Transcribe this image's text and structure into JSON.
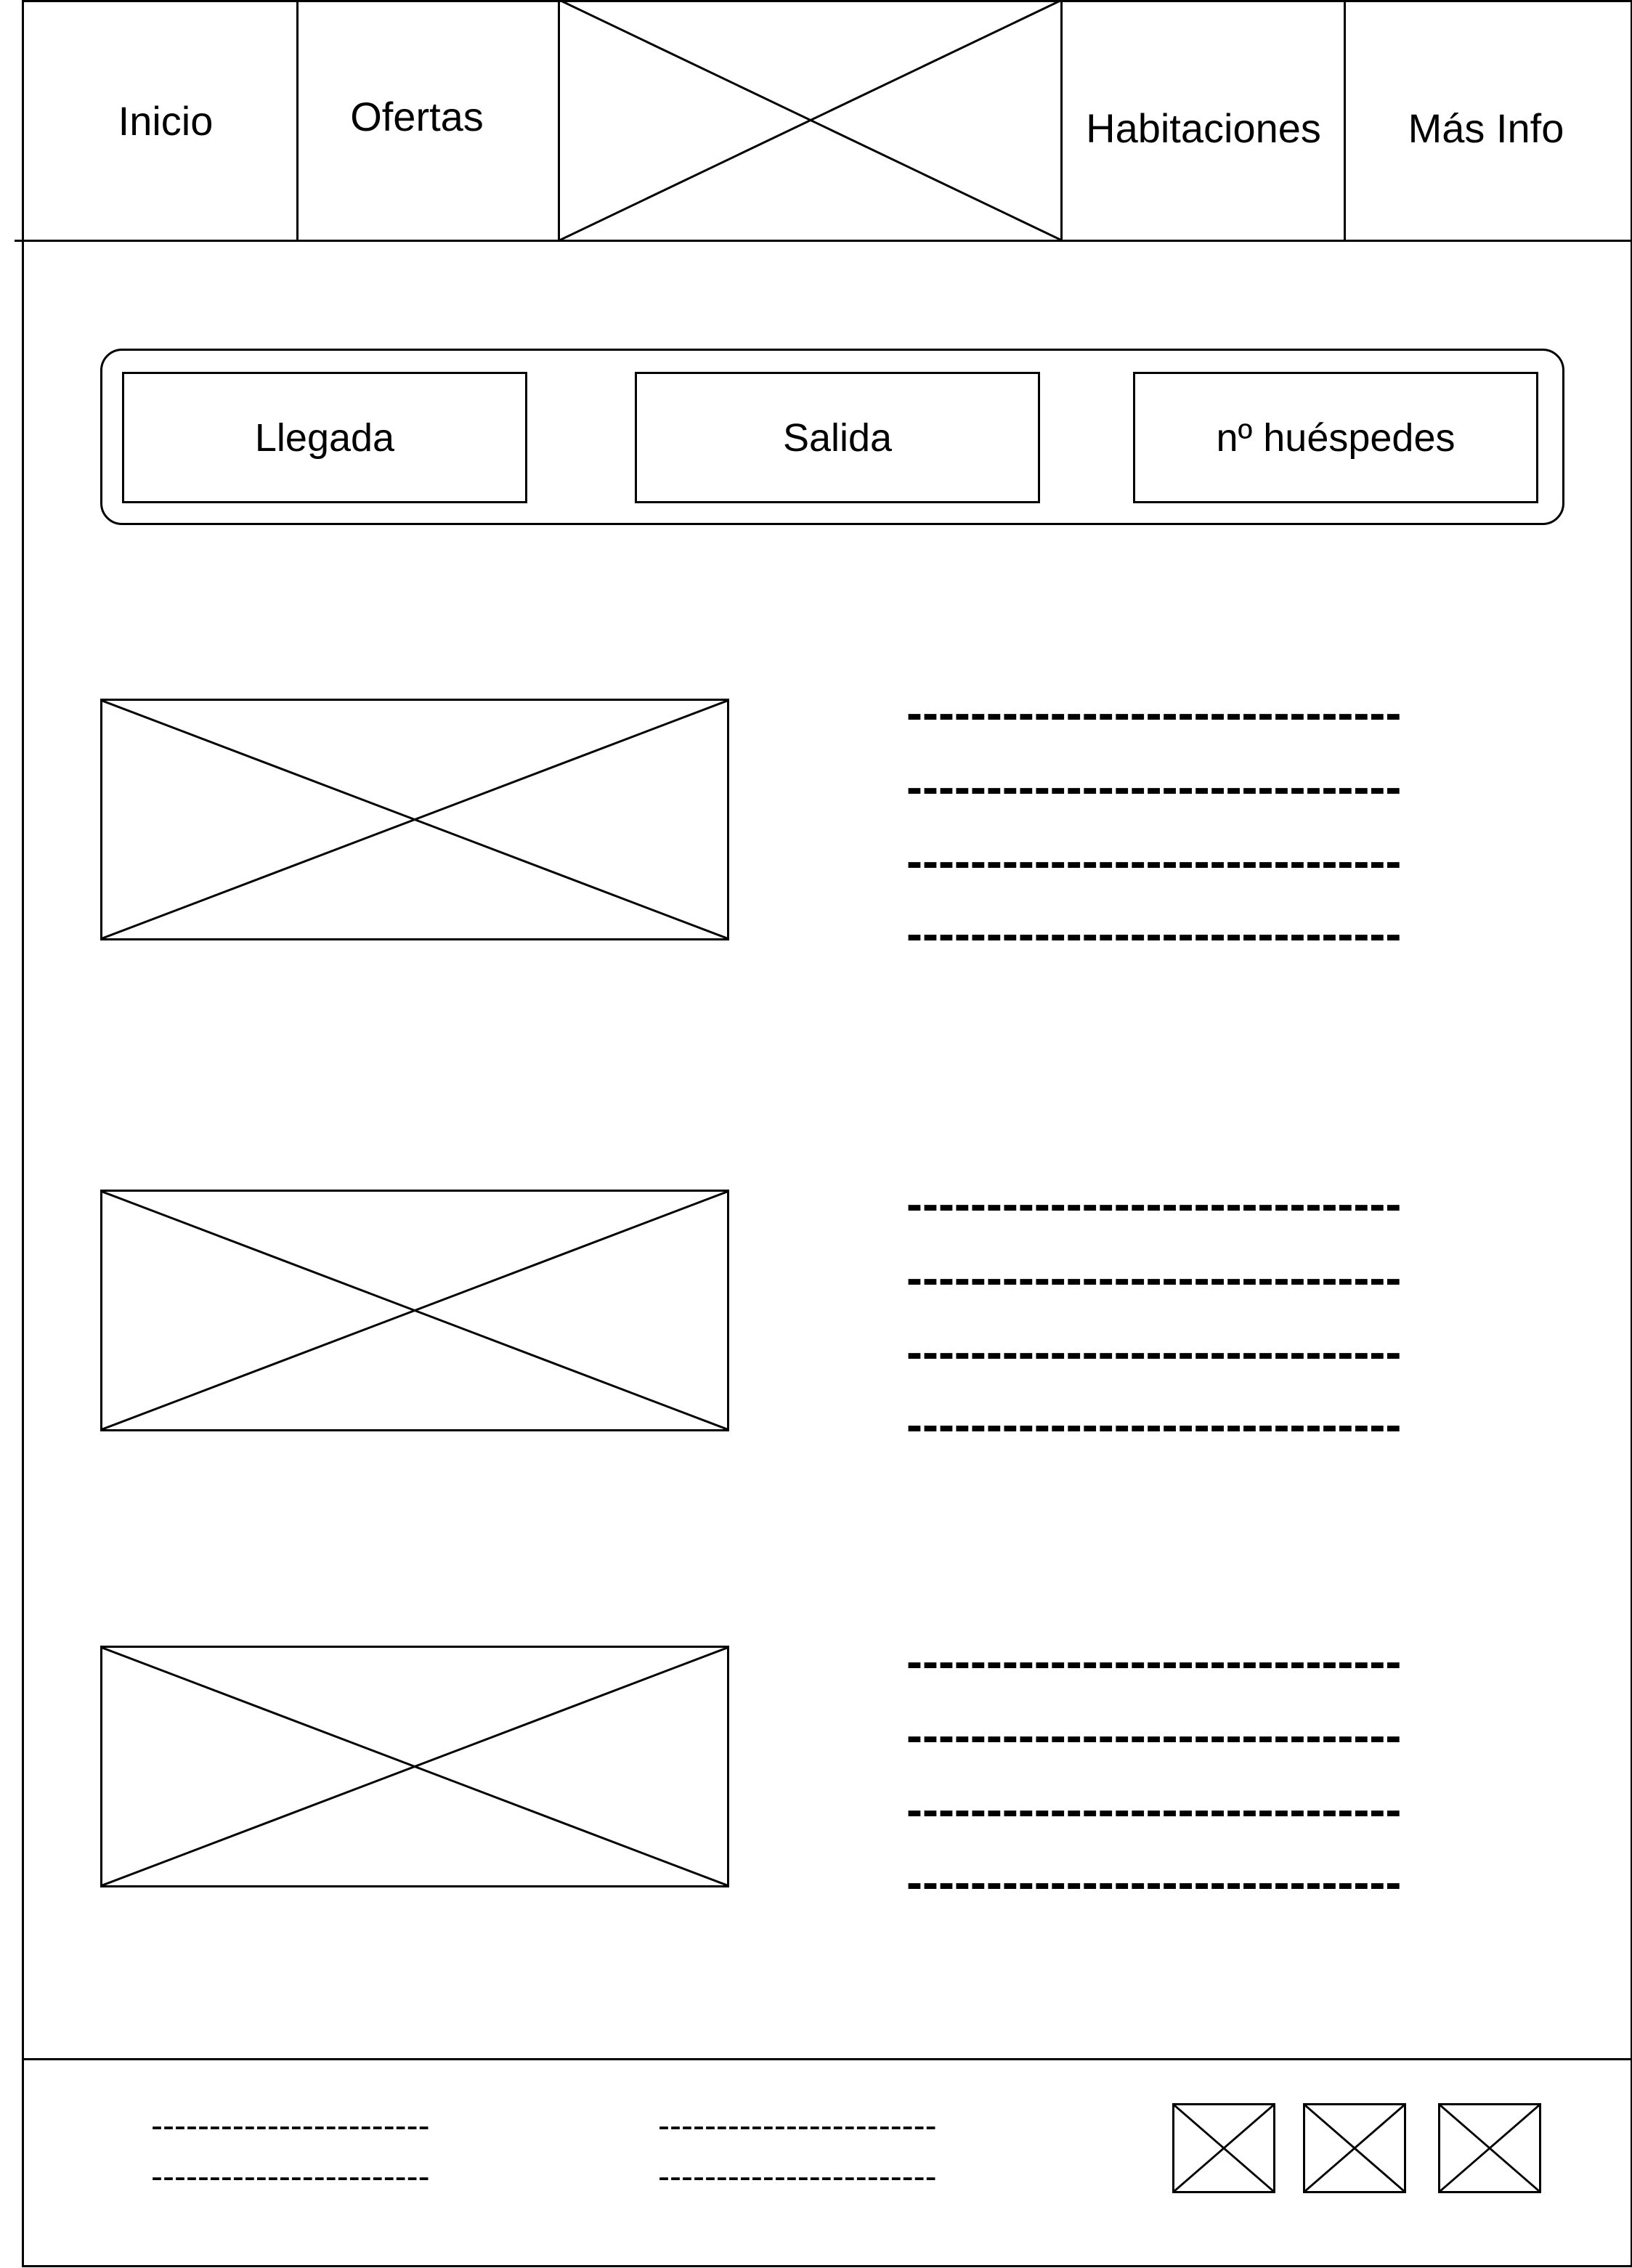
{
  "nav": {
    "items": [
      {
        "label": "Inicio"
      },
      {
        "label": "Ofertas"
      },
      {
        "label": "Habitaciones"
      },
      {
        "label": "Más Info"
      }
    ]
  },
  "booking": {
    "arrival_label": "Llegada",
    "departure_label": "Salida",
    "guests_label": "nº huéspedes"
  },
  "rooms": {
    "dash_line": "-------------------------------"
  },
  "footer": {
    "dash_line": "------------------------"
  }
}
